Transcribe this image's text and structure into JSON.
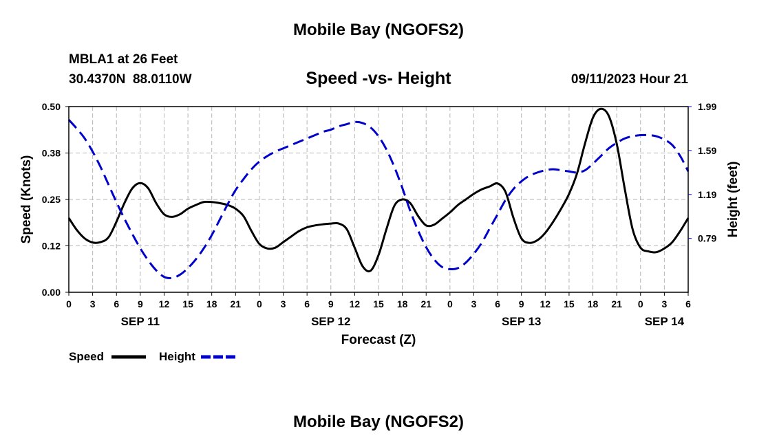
{
  "page": {
    "title": "Mobile Bay (NGOFS2)",
    "title_repeat": "Mobile Bay (NGOFS2)"
  },
  "chart_data": {
    "type": "line",
    "title": "Speed -vs- Height",
    "station": "MBLA1 at 26 Feet",
    "coords": "30.4370N  88.0110W",
    "timestamp": "09/11/2023 Hour 21",
    "xlabel": "Forecast (Z)",
    "ylabel_left": "Speed (Knots)",
    "ylabel_right": "Height (feet)",
    "x_range_hours": [
      0,
      78
    ],
    "x_tick_step_hours": 3,
    "x_tick_labels": [
      "0",
      "3",
      "6",
      "9",
      "12",
      "15",
      "18",
      "21",
      "0",
      "3",
      "6",
      "9",
      "12",
      "15",
      "18",
      "21",
      "0",
      "3",
      "6",
      "9",
      "12",
      "15",
      "18",
      "21",
      "0",
      "3",
      "6"
    ],
    "date_labels": [
      {
        "label": "SEP 11",
        "hour": 9
      },
      {
        "label": "SEP 12",
        "hour": 33
      },
      {
        "label": "SEP 13",
        "hour": 57
      },
      {
        "label": "SEP 14",
        "hour": 75
      }
    ],
    "y_left": {
      "range": [
        0,
        0.5
      ],
      "ticks": [
        0.0,
        0.125,
        0.25,
        0.375,
        0.5
      ],
      "tick_labels": [
        "0.00",
        "0.12",
        "0.25",
        "0.38",
        "0.50"
      ]
    },
    "y_right": {
      "range": [
        0.3,
        1.99
      ],
      "ticks": [
        0.79,
        1.19,
        1.59,
        1.99
      ],
      "tick_labels": [
        "0.79",
        "1.19",
        "1.59",
        "1.99"
      ]
    },
    "grid": true,
    "legend": {
      "position": "bottom-left",
      "speed_label": "Speed",
      "height_label": "Height"
    },
    "series": [
      {
        "name": "Speed",
        "axis": "left",
        "color": "#000000",
        "style": "solid",
        "x": [
          0,
          1,
          2,
          3,
          4,
          5,
          6,
          7,
          8,
          9,
          10,
          11,
          12,
          13,
          14,
          15,
          16,
          17,
          18,
          19,
          20,
          21,
          22,
          23,
          24,
          25,
          26,
          27,
          28,
          29,
          30,
          31,
          32,
          33,
          34,
          35,
          36,
          37,
          38,
          39,
          40,
          41,
          42,
          43,
          44,
          45,
          46,
          47,
          48,
          49,
          50,
          51,
          52,
          53,
          54,
          55,
          56,
          57,
          58,
          59,
          60,
          61,
          62,
          63,
          64,
          65,
          66,
          67,
          68,
          69,
          70,
          71,
          72,
          73,
          74,
          75,
          76,
          77,
          78
        ],
        "values": [
          0.2,
          0.168,
          0.145,
          0.134,
          0.135,
          0.148,
          0.19,
          0.24,
          0.28,
          0.294,
          0.28,
          0.24,
          0.21,
          0.203,
          0.21,
          0.225,
          0.235,
          0.243,
          0.243,
          0.24,
          0.235,
          0.225,
          0.205,
          0.165,
          0.13,
          0.118,
          0.12,
          0.135,
          0.15,
          0.165,
          0.175,
          0.18,
          0.183,
          0.185,
          0.185,
          0.17,
          0.12,
          0.07,
          0.058,
          0.1,
          0.17,
          0.233,
          0.25,
          0.24,
          0.205,
          0.18,
          0.182,
          0.198,
          0.215,
          0.235,
          0.25,
          0.265,
          0.277,
          0.285,
          0.293,
          0.27,
          0.2,
          0.145,
          0.133,
          0.14,
          0.16,
          0.19,
          0.225,
          0.265,
          0.32,
          0.4,
          0.47,
          0.494,
          0.475,
          0.4,
          0.28,
          0.17,
          0.12,
          0.11,
          0.108,
          0.118,
          0.135,
          0.165,
          0.2
        ]
      },
      {
        "name": "Height",
        "axis": "right",
        "color": "#0000cc",
        "style": "dashed",
        "x": [
          0,
          1,
          2,
          3,
          4,
          5,
          6,
          7,
          8,
          9,
          10,
          11,
          12,
          13,
          14,
          15,
          16,
          17,
          18,
          19,
          20,
          21,
          22,
          23,
          24,
          25,
          26,
          27,
          28,
          29,
          30,
          31,
          32,
          33,
          34,
          35,
          36,
          37,
          38,
          39,
          40,
          41,
          42,
          43,
          44,
          45,
          46,
          47,
          48,
          49,
          50,
          51,
          52,
          53,
          54,
          55,
          56,
          57,
          58,
          59,
          60,
          61,
          62,
          63,
          64,
          65,
          66,
          67,
          68,
          69,
          70,
          71,
          72,
          73,
          74,
          75,
          76,
          77,
          78
        ],
        "values": [
          1.87,
          1.79,
          1.7,
          1.58,
          1.44,
          1.28,
          1.12,
          0.97,
          0.83,
          0.7,
          0.59,
          0.5,
          0.44,
          0.43,
          0.46,
          0.52,
          0.6,
          0.7,
          0.82,
          0.96,
          1.1,
          1.23,
          1.33,
          1.42,
          1.49,
          1.54,
          1.58,
          1.61,
          1.64,
          1.67,
          1.7,
          1.73,
          1.76,
          1.78,
          1.81,
          1.83,
          1.85,
          1.84,
          1.8,
          1.72,
          1.6,
          1.44,
          1.25,
          1.04,
          0.86,
          0.71,
          0.6,
          0.53,
          0.51,
          0.52,
          0.57,
          0.65,
          0.75,
          0.88,
          1.01,
          1.14,
          1.24,
          1.31,
          1.36,
          1.39,
          1.41,
          1.42,
          1.41,
          1.4,
          1.39,
          1.41,
          1.47,
          1.54,
          1.61,
          1.66,
          1.7,
          1.72,
          1.73,
          1.73,
          1.72,
          1.69,
          1.64,
          1.54,
          1.4
        ]
      }
    ]
  }
}
